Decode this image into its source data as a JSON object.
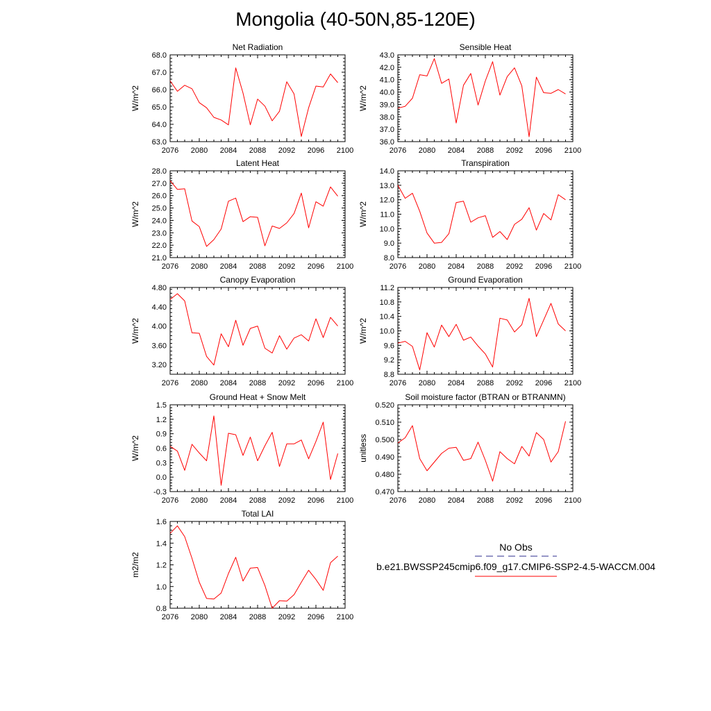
{
  "page": {
    "title": "Mongolia (40-50N,85-120E)"
  },
  "legend": {
    "obs_label": "No Obs",
    "model_label": "b.e21.BWSSP245cmip6.f09_g17.CMIP6-SSP2-4.5-WACCM.004",
    "obs_color": "#2b2b8c",
    "model_color": "#ff0000"
  },
  "colors": {
    "line": "#ff0000",
    "axes": "#000000"
  },
  "chart_data": [
    {
      "type": "line",
      "title": "Net Radiation",
      "ylabel": "W/m^2",
      "xlim": [
        2076,
        2100
      ],
      "ylim": [
        63.0,
        68.0
      ],
      "xticks": [
        "2076",
        "2080",
        "2084",
        "2088",
        "2092",
        "2096",
        "2100"
      ],
      "yticks": [
        "63.0",
        "64.0",
        "65.0",
        "66.0",
        "67.0",
        "68.0"
      ],
      "x": [
        2076,
        2077,
        2078,
        2079,
        2080,
        2081,
        2082,
        2083,
        2084,
        2085,
        2086,
        2087,
        2088,
        2089,
        2090,
        2091,
        2092,
        2093,
        2094,
        2095,
        2096,
        2097,
        2098,
        2099
      ],
      "values": [
        66.5,
        65.9,
        66.25,
        66.05,
        65.25,
        64.95,
        64.4,
        64.25,
        63.97,
        67.25,
        65.8,
        63.97,
        65.45,
        65.05,
        64.2,
        64.75,
        66.45,
        65.75,
        63.3,
        64.95,
        66.2,
        66.15,
        66.9,
        66.4
      ],
      "series": [
        {
          "name": "b.e21.BWSSP245cmip6.f09_g17.CMIP6-SSP2-4.5-WACCM.004",
          "color": "#ff0000"
        }
      ]
    },
    {
      "type": "line",
      "title": "Sensible Heat",
      "ylabel": "W/m^2",
      "xlim": [
        2076,
        2100
      ],
      "ylim": [
        36.0,
        43.0
      ],
      "xticks": [
        "2076",
        "2080",
        "2084",
        "2088",
        "2092",
        "2096",
        "2100"
      ],
      "yticks": [
        "36.0",
        "37.0",
        "38.0",
        "39.0",
        "40.0",
        "41.0",
        "42.0",
        "43.0"
      ],
      "x": [
        2076,
        2077,
        2078,
        2079,
        2080,
        2081,
        2082,
        2083,
        2084,
        2085,
        2086,
        2087,
        2088,
        2089,
        2090,
        2091,
        2092,
        2093,
        2094,
        2095,
        2096,
        2097,
        2098,
        2099
      ],
      "values": [
        38.7,
        38.85,
        39.5,
        41.4,
        41.3,
        42.7,
        40.7,
        41.05,
        37.5,
        40.55,
        41.5,
        38.95,
        40.9,
        42.45,
        39.75,
        41.25,
        41.95,
        40.5,
        36.4,
        41.2,
        39.95,
        39.9,
        40.2,
        39.85
      ],
      "series": [
        {
          "name": "b.e21.BWSSP245cmip6.f09_g17.CMIP6-SSP2-4.5-WACCM.004",
          "color": "#ff0000"
        }
      ]
    },
    {
      "type": "line",
      "title": "Latent Heat",
      "ylabel": "W/m^2",
      "xlim": [
        2076,
        2100
      ],
      "ylim": [
        21.0,
        28.0
      ],
      "xticks": [
        "2076",
        "2080",
        "2084",
        "2088",
        "2092",
        "2096",
        "2100"
      ],
      "yticks": [
        "21.0",
        "22.0",
        "23.0",
        "24.0",
        "25.0",
        "26.0",
        "27.0",
        "28.0"
      ],
      "x": [
        2076,
        2077,
        2078,
        2079,
        2080,
        2081,
        2082,
        2083,
        2084,
        2085,
        2086,
        2087,
        2088,
        2089,
        2090,
        2091,
        2092,
        2093,
        2094,
        2095,
        2096,
        2097,
        2098,
        2099
      ],
      "values": [
        27.2,
        26.5,
        26.55,
        23.95,
        23.5,
        21.9,
        22.45,
        23.3,
        25.55,
        25.8,
        23.9,
        24.3,
        24.25,
        21.95,
        23.55,
        23.35,
        23.8,
        24.55,
        26.2,
        23.4,
        25.5,
        25.15,
        26.7,
        25.95
      ],
      "series": [
        {
          "name": "b.e21.BWSSP245cmip6.f09_g17.CMIP6-SSP2-4.5-WACCM.004",
          "color": "#ff0000"
        }
      ]
    },
    {
      "type": "line",
      "title": "Transpiration",
      "ylabel": "W/m^2",
      "xlim": [
        2076,
        2100
      ],
      "ylim": [
        8.0,
        14.0
      ],
      "xticks": [
        "2076",
        "2080",
        "2084",
        "2088",
        "2092",
        "2096",
        "2100"
      ],
      "yticks": [
        "8.0",
        "9.0",
        "10.0",
        "11.0",
        "12.0",
        "13.0",
        "14.0"
      ],
      "x": [
        2076,
        2077,
        2078,
        2079,
        2080,
        2081,
        2082,
        2083,
        2084,
        2085,
        2086,
        2087,
        2088,
        2089,
        2090,
        2091,
        2092,
        2093,
        2094,
        2095,
        2096,
        2097,
        2098,
        2099
      ],
      "values": [
        13.0,
        12.1,
        12.45,
        11.2,
        9.7,
        9.0,
        9.05,
        9.65,
        11.8,
        11.9,
        10.45,
        10.75,
        10.9,
        9.4,
        9.8,
        9.25,
        10.3,
        10.65,
        11.45,
        9.9,
        11.05,
        10.6,
        12.35,
        12.0
      ],
      "series": [
        {
          "name": "b.e21.BWSSP245cmip6.f09_g17.CMIP6-SSP2-4.5-WACCM.004",
          "color": "#ff0000"
        }
      ]
    },
    {
      "type": "line",
      "title": "Canopy Evaporation",
      "ylabel": "W/m^2",
      "xlim": [
        2076,
        2100
      ],
      "ylim": [
        3.0,
        4.8
      ],
      "xticks": [
        "2076",
        "2080",
        "2084",
        "2088",
        "2092",
        "2096",
        "2100"
      ],
      "yticks": [
        "3.20",
        "3.60",
        "4.00",
        "4.40",
        "4.80"
      ],
      "x": [
        2076,
        2077,
        2078,
        2079,
        2080,
        2081,
        2082,
        2083,
        2084,
        2085,
        2086,
        2087,
        2088,
        2089,
        2090,
        2091,
        2092,
        2093,
        2094,
        2095,
        2096,
        2097,
        2098,
        2099
      ],
      "values": [
        4.55,
        4.67,
        4.52,
        3.86,
        3.85,
        3.37,
        3.19,
        3.84,
        3.57,
        4.12,
        3.6,
        3.95,
        4.0,
        3.54,
        3.44,
        3.8,
        3.52,
        3.75,
        3.82,
        3.69,
        4.15,
        3.76,
        4.18,
        4.0
      ],
      "series": [
        {
          "name": "b.e21.BWSSP245cmip6.f09_g17.CMIP6-SSP2-4.5-WACCM.004",
          "color": "#ff0000"
        }
      ]
    },
    {
      "type": "line",
      "title": "Ground Evaporation",
      "ylabel": "W/m^2",
      "xlim": [
        2076,
        2100
      ],
      "ylim": [
        8.8,
        11.2
      ],
      "xticks": [
        "2076",
        "2080",
        "2084",
        "2088",
        "2092",
        "2096",
        "2100"
      ],
      "yticks": [
        "8.8",
        "9.2",
        "9.6",
        "10.0",
        "10.4",
        "10.8",
        "11.2"
      ],
      "x": [
        2076,
        2077,
        2078,
        2079,
        2080,
        2081,
        2082,
        2083,
        2084,
        2085,
        2086,
        2087,
        2088,
        2089,
        2090,
        2091,
        2092,
        2093,
        2094,
        2095,
        2096,
        2097,
        2098,
        2099
      ],
      "values": [
        9.66,
        9.71,
        9.57,
        8.92,
        9.95,
        9.55,
        10.16,
        9.84,
        10.18,
        9.74,
        9.83,
        9.58,
        9.36,
        9.0,
        10.35,
        10.3,
        9.97,
        10.17,
        10.9,
        9.84,
        10.3,
        10.76,
        10.19,
        10.0
      ],
      "series": [
        {
          "name": "b.e21.BWSSP245cmip6.f09_g17.CMIP6-SSP2-4.5-WACCM.004",
          "color": "#ff0000"
        }
      ]
    },
    {
      "type": "line",
      "title": "Ground Heat + Snow Melt",
      "ylabel": "W/m^2",
      "xlim": [
        2076,
        2100
      ],
      "ylim": [
        -0.3,
        1.5
      ],
      "xticks": [
        "2076",
        "2080",
        "2084",
        "2088",
        "2092",
        "2096",
        "2100"
      ],
      "yticks": [
        "-0.3",
        "0.0",
        "0.3",
        "0.6",
        "0.9",
        "1.2",
        "1.5"
      ],
      "x": [
        2076,
        2077,
        2078,
        2079,
        2080,
        2081,
        2082,
        2083,
        2084,
        2085,
        2086,
        2087,
        2088,
        2089,
        2090,
        2091,
        2092,
        2093,
        2094,
        2095,
        2096,
        2097,
        2098,
        2099
      ],
      "values": [
        0.64,
        0.54,
        0.14,
        0.68,
        0.5,
        0.34,
        1.27,
        -0.17,
        0.91,
        0.88,
        0.45,
        0.83,
        0.34,
        0.65,
        0.93,
        0.22,
        0.69,
        0.69,
        0.77,
        0.38,
        0.74,
        1.14,
        -0.05,
        0.49
      ],
      "series": [
        {
          "name": "b.e21.BWSSP245cmip6.f09_g17.CMIP6-SSP2-4.5-WACCM.004",
          "color": "#ff0000"
        }
      ]
    },
    {
      "type": "line",
      "title": "Soil moisture factor (BTRAN or BTRANMN)",
      "ylabel": "unitless",
      "xlim": [
        2076,
        2100
      ],
      "ylim": [
        0.47,
        0.52
      ],
      "xticks": [
        "2076",
        "2080",
        "2084",
        "2088",
        "2092",
        "2096",
        "2100"
      ],
      "yticks": [
        "0.470",
        "0.480",
        "0.490",
        "0.500",
        "0.510",
        "0.520"
      ],
      "x": [
        2076,
        2077,
        2078,
        2079,
        2080,
        2081,
        2082,
        2083,
        2084,
        2085,
        2086,
        2087,
        2088,
        2089,
        2090,
        2091,
        2092,
        2093,
        2094,
        2095,
        2096,
        2097,
        2098,
        2099
      ],
      "values": [
        0.498,
        0.501,
        0.508,
        0.489,
        0.482,
        0.487,
        0.492,
        0.495,
        0.4955,
        0.488,
        0.489,
        0.4985,
        0.488,
        0.476,
        0.493,
        0.489,
        0.486,
        0.496,
        0.4905,
        0.504,
        0.5,
        0.487,
        0.493,
        0.5105
      ],
      "series": [
        {
          "name": "b.e21.BWSSP245cmip6.f09_g17.CMIP6-SSP2-4.5-WACCM.004",
          "color": "#ff0000"
        }
      ]
    },
    {
      "type": "line",
      "title": "Total LAI",
      "ylabel": "m2/m2",
      "xlim": [
        2076,
        2100
      ],
      "ylim": [
        0.8,
        1.6
      ],
      "xticks": [
        "2076",
        "2080",
        "2084",
        "2088",
        "2092",
        "2096",
        "2100"
      ],
      "yticks": [
        "0.8",
        "1.0",
        "1.2",
        "1.4",
        "1.6"
      ],
      "x": [
        2076,
        2077,
        2078,
        2079,
        2080,
        2081,
        2082,
        2083,
        2084,
        2085,
        2086,
        2087,
        2088,
        2089,
        2090,
        2091,
        2092,
        2093,
        2094,
        2095,
        2096,
        2097,
        2098,
        2099
      ],
      "values": [
        1.49,
        1.56,
        1.46,
        1.26,
        1.04,
        0.89,
        0.885,
        0.94,
        1.12,
        1.27,
        1.05,
        1.17,
        1.175,
        1.01,
        0.8,
        0.87,
        0.865,
        0.925,
        1.04,
        1.15,
        1.065,
        0.965,
        1.22,
        1.28
      ],
      "series": [
        {
          "name": "b.e21.BWSSP245cmip6.f09_g17.CMIP6-SSP2-4.5-WACCM.004",
          "color": "#ff0000"
        }
      ]
    }
  ]
}
